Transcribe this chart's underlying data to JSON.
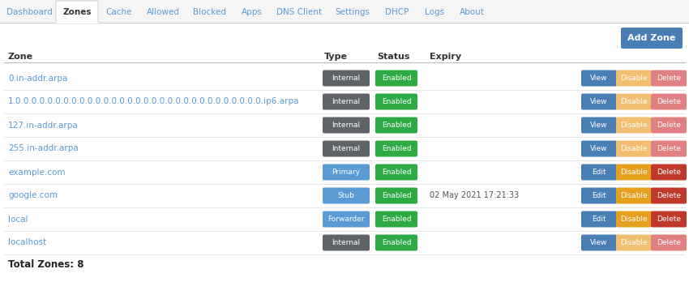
{
  "bg_color": "#ffffff",
  "nav_tabs": [
    "Dashboard",
    "Zones",
    "Cache",
    "Allowed",
    "Blocked",
    "Apps",
    "DNS Client",
    "Settings",
    "DHCP",
    "Logs",
    "About"
  ],
  "active_tab": "Zones",
  "inactive_tab_color": "#5b9bd5",
  "add_zone_btn_color": "#4a7fb5",
  "add_zone_btn_text": "Add Zone",
  "headers": [
    "Zone",
    "Type",
    "Status",
    "Expiry"
  ],
  "rows": [
    {
      "zone": "0.in-addr.arpa",
      "type": "Internal",
      "type_color": "#5f6368",
      "status": "Enabled",
      "expiry": "",
      "btn1": "View",
      "btn1_type": "view"
    },
    {
      "zone": "1.0.0.0.0.0.0.0.0.0.0.0.0.0.0.0.0.0.0.0.0.0.0.0.0.0.0.0.0.0.0.0.ip6.arpa",
      "type": "Internal",
      "type_color": "#5f6368",
      "status": "Enabled",
      "expiry": "",
      "btn1": "View",
      "btn1_type": "view"
    },
    {
      "zone": "127.in-addr.arpa",
      "type": "Internal",
      "type_color": "#5f6368",
      "status": "Enabled",
      "expiry": "",
      "btn1": "View",
      "btn1_type": "view"
    },
    {
      "zone": "255.in-addr.arpa",
      "type": "Internal",
      "type_color": "#5f6368",
      "status": "Enabled",
      "expiry": "",
      "btn1": "View",
      "btn1_type": "view"
    },
    {
      "zone": "example.com",
      "type": "Primary",
      "type_color": "#5b9bd5",
      "status": "Enabled",
      "expiry": "",
      "btn1": "Edit",
      "btn1_type": "edit"
    },
    {
      "zone": "google.com",
      "type": "Stub",
      "type_color": "#5b9bd5",
      "status": "Enabled",
      "expiry": "02 May 2021 17:21:33",
      "btn1": "Edit",
      "btn1_type": "edit"
    },
    {
      "zone": "local",
      "type": "Forwarder",
      "type_color": "#5b9bd5",
      "status": "Enabled",
      "expiry": "",
      "btn1": "Edit",
      "btn1_type": "edit"
    },
    {
      "zone": "localhost",
      "type": "Internal",
      "type_color": "#5f6368",
      "status": "Enabled",
      "expiry": "",
      "btn1": "View",
      "btn1_type": "view"
    }
  ],
  "total_label": "Total Zones: 8",
  "btn_view_color": "#4a7fb5",
  "btn_disable_color_active": "#e6a020",
  "btn_disable_color_inactive": "#f0c070",
  "btn_delete_color_active": "#c0392b",
  "btn_delete_color_inactive": "#e08080",
  "btn_enabled_color": "#2eaa44",
  "row_line_color": "#dddddd",
  "zone_text_color": "#5b9bd5",
  "header_text_color": "#333333",
  "nav_bg": "#f5f5f5",
  "tab_widths": [
    65,
    52,
    52,
    57,
    58,
    45,
    72,
    60,
    50,
    42,
    50
  ]
}
